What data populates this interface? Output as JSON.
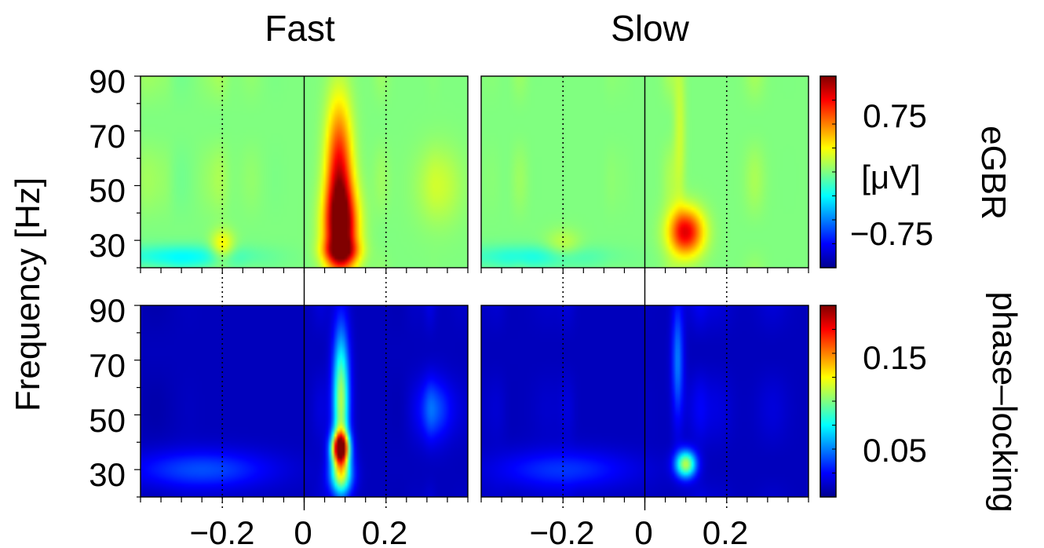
{
  "chart_data": {
    "type": "heatmap",
    "ylabel": "Frequency [Hz]",
    "columns": [
      "Fast",
      "Slow"
    ],
    "rows": [
      "eGBR",
      "phase–locking"
    ],
    "x_ticks": [
      {
        "value": -0.2,
        "label": "−0.2"
      },
      {
        "value": 0,
        "label": "0"
      },
      {
        "value": 0.2,
        "label": "0.2"
      }
    ],
    "y_ticks": [
      {
        "value": 90,
        "label": "90"
      },
      {
        "value": 70,
        "label": "70"
      },
      {
        "value": 50,
        "label": "50"
      },
      {
        "value": 30,
        "label": "30"
      }
    ],
    "xlim": [
      -0.4,
      0.4
    ],
    "ylim": [
      20,
      90
    ],
    "reference_lines": {
      "solid": 0,
      "dotted": [
        -0.2,
        0.2
      ]
    },
    "colormap": [
      "#00008f",
      "#0000ff",
      "#0080ff",
      "#00ffff",
      "#80ff80",
      "#ffff00",
      "#ff8000",
      "#ff0000",
      "#800000"
    ],
    "colorbars": [
      {
        "row": "eGBR",
        "title": "eGBR",
        "unit": "[μV]",
        "range": [
          -1.0,
          1.0
        ],
        "ticks": [
          {
            "value": 0.75,
            "label": "0.75"
          },
          {
            "value": -0.75,
            "label": "−0.75"
          }
        ]
      },
      {
        "row": "phase–locking",
        "title": "phase–locking",
        "range": [
          0.0,
          0.2
        ],
        "ticks": [
          {
            "value": 0.15,
            "label": "0.15"
          },
          {
            "value": 0.05,
            "label": "0.05"
          }
        ]
      }
    ],
    "panels": [
      {
        "row": "eGBR",
        "column": "Fast",
        "baseline": 0.0,
        "blobs": [
          {
            "t": 0.09,
            "f": 34,
            "st": 0.028,
            "sf": 11,
            "a": 0.95
          },
          {
            "t": 0.085,
            "f": 55,
            "st": 0.022,
            "sf": 18,
            "a": 0.75
          },
          {
            "t": 0.09,
            "f": 26,
            "st": 0.03,
            "sf": 3,
            "a": 0.45
          },
          {
            "t": -0.2,
            "f": 28,
            "st": 0.02,
            "sf": 4,
            "a": 0.3
          },
          {
            "t": -0.3,
            "f": 24,
            "st": 0.12,
            "sf": 3,
            "a": -0.25
          },
          {
            "t": 0.33,
            "f": 50,
            "st": 0.04,
            "sf": 10,
            "a": 0.15
          }
        ]
      },
      {
        "row": "eGBR",
        "column": "Slow",
        "baseline": 0.0,
        "blobs": [
          {
            "t": 0.1,
            "f": 33,
            "st": 0.03,
            "sf": 6,
            "a": 0.8
          },
          {
            "t": 0.085,
            "f": 70,
            "st": 0.01,
            "sf": 20,
            "a": 0.15
          },
          {
            "t": -0.2,
            "f": 28,
            "st": 0.03,
            "sf": 4,
            "a": 0.15
          },
          {
            "t": -0.28,
            "f": 24,
            "st": 0.12,
            "sf": 3,
            "a": -0.2
          }
        ]
      },
      {
        "row": "phase–locking",
        "column": "Fast",
        "baseline": 0.01,
        "blobs": [
          {
            "t": 0.088,
            "f": 38,
            "st": 0.015,
            "sf": 4,
            "a": 0.16
          },
          {
            "t": 0.09,
            "f": 55,
            "st": 0.014,
            "sf": 18,
            "a": 0.1
          },
          {
            "t": 0.09,
            "f": 28,
            "st": 0.02,
            "sf": 5,
            "a": 0.08
          },
          {
            "t": -0.25,
            "f": 30,
            "st": 0.12,
            "sf": 5,
            "a": 0.03
          },
          {
            "t": 0.32,
            "f": 52,
            "st": 0.03,
            "sf": 8,
            "a": 0.03
          }
        ]
      },
      {
        "row": "phase–locking",
        "column": "Slow",
        "baseline": 0.01,
        "blobs": [
          {
            "t": 0.1,
            "f": 32,
            "st": 0.018,
            "sf": 3.5,
            "a": 0.1
          },
          {
            "t": 0.08,
            "f": 70,
            "st": 0.01,
            "sf": 15,
            "a": 0.04
          },
          {
            "t": -0.2,
            "f": 30,
            "st": 0.12,
            "sf": 5,
            "a": 0.025
          }
        ]
      }
    ]
  }
}
